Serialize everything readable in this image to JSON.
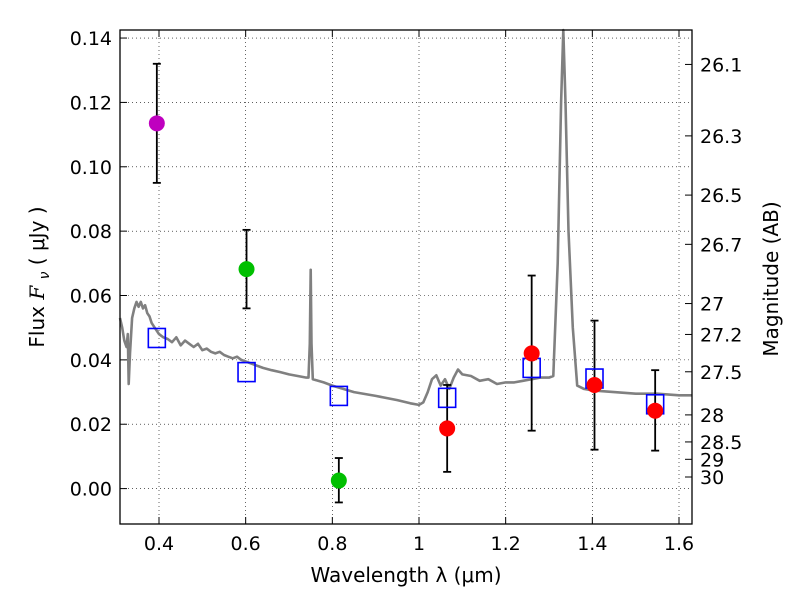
{
  "chart_data": {
    "type": "scatter",
    "xlabel": "Wavelength  λ (μm)",
    "ylabel": "Flux  F_ν  ( μJy )",
    "ylabel_parts": {
      "prefix": "Flux ",
      "symbol": "F",
      "subscript": "ν",
      "paren_open": "( ",
      "unit": "μJy",
      "paren_close": " )"
    },
    "y2label": "Magnitude (AB)",
    "xlim": [
      0.31,
      1.63
    ],
    "ylim": [
      -0.011,
      0.1425
    ],
    "x_ticks": [
      0.4,
      0.6,
      0.8,
      1.0,
      1.2,
      1.4,
      1.6
    ],
    "x_tick_labels": [
      "0.4",
      "0.6",
      "0.8",
      "1",
      "1.2",
      "1.4",
      "1.6"
    ],
    "y_ticks": [
      0.0,
      0.02,
      0.04,
      0.06,
      0.08,
      0.1,
      0.12,
      0.14
    ],
    "y_tick_labels": [
      "0.00",
      "0.02",
      "0.04",
      "0.06",
      "0.08",
      "0.10",
      "0.12",
      "0.14"
    ],
    "y2_ticks": [
      {
        "label": "26.1",
        "flux": 0.1318
      },
      {
        "label": "26.3",
        "flux": 0.1096
      },
      {
        "label": "26.5",
        "flux": 0.0912
      },
      {
        "label": "26.7",
        "flux": 0.0759
      },
      {
        "label": "27",
        "flux": 0.0575
      },
      {
        "label": "27.2",
        "flux": 0.0479
      },
      {
        "label": "27.5",
        "flux": 0.0363
      },
      {
        "label": "28",
        "flux": 0.0229
      },
      {
        "label": "28.5",
        "flux": 0.0145
      },
      {
        "label": "29",
        "flux": 0.0091
      },
      {
        "label": "30",
        "flux": 0.0036
      }
    ],
    "grid": true,
    "colors": {
      "magenta": "#bf00bf",
      "green": "#00bf00",
      "red": "#ff0000",
      "model_square": "#0000ff",
      "sed": "#808080",
      "errorbar": "#000000"
    },
    "series": [
      {
        "name": "observed_magenta",
        "marker": "circle",
        "color": "magenta",
        "points": [
          {
            "x": 0.395,
            "y": 0.1135,
            "yerr_low": 0.0185,
            "yerr_high": 0.0185
          }
        ]
      },
      {
        "name": "observed_green",
        "marker": "circle",
        "color": "green",
        "points": [
          {
            "x": 0.602,
            "y": 0.0682,
            "yerr_low": 0.0122,
            "yerr_high": 0.0122
          },
          {
            "x": 0.815,
            "y": 0.0025,
            "yerr_low": 0.0068,
            "yerr_high": 0.007
          }
        ]
      },
      {
        "name": "observed_red",
        "marker": "circle",
        "color": "red",
        "points": [
          {
            "x": 1.065,
            "y": 0.0187,
            "yerr_low": 0.0135,
            "yerr_high": 0.0135
          },
          {
            "x": 1.26,
            "y": 0.042,
            "yerr_low": 0.024,
            "yerr_high": 0.0242
          },
          {
            "x": 1.405,
            "y": 0.0322,
            "yerr_low": 0.0201,
            "yerr_high": 0.02
          },
          {
            "x": 1.545,
            "y": 0.0242,
            "yerr_low": 0.0124,
            "yerr_high": 0.0126
          }
        ]
      },
      {
        "name": "model_photometry",
        "marker": "square",
        "color": "model_square",
        "points": [
          {
            "x": 0.395,
            "y": 0.0468
          },
          {
            "x": 0.602,
            "y": 0.0362
          },
          {
            "x": 0.815,
            "y": 0.0288
          },
          {
            "x": 1.065,
            "y": 0.0282
          },
          {
            "x": 1.26,
            "y": 0.0375
          },
          {
            "x": 1.405,
            "y": 0.0342
          },
          {
            "x": 1.545,
            "y": 0.0262
          }
        ]
      }
    ],
    "sed_curve": [
      [
        0.31,
        0.053
      ],
      [
        0.315,
        0.05
      ],
      [
        0.32,
        0.046
      ],
      [
        0.325,
        0.044
      ],
      [
        0.328,
        0.048
      ],
      [
        0.33,
        0.0325
      ],
      [
        0.333,
        0.042
      ],
      [
        0.338,
        0.053
      ],
      [
        0.343,
        0.056
      ],
      [
        0.348,
        0.058
      ],
      [
        0.353,
        0.0565
      ],
      [
        0.358,
        0.058
      ],
      [
        0.363,
        0.056
      ],
      [
        0.368,
        0.057
      ],
      [
        0.373,
        0.0545
      ],
      [
        0.378,
        0.0535
      ],
      [
        0.383,
        0.0515
      ],
      [
        0.39,
        0.05
      ],
      [
        0.4,
        0.048
      ],
      [
        0.41,
        0.047
      ],
      [
        0.42,
        0.0465
      ],
      [
        0.43,
        0.0455
      ],
      [
        0.44,
        0.047
      ],
      [
        0.45,
        0.0445
      ],
      [
        0.46,
        0.046
      ],
      [
        0.47,
        0.045
      ],
      [
        0.48,
        0.044
      ],
      [
        0.49,
        0.045
      ],
      [
        0.5,
        0.043
      ],
      [
        0.51,
        0.0435
      ],
      [
        0.52,
        0.0425
      ],
      [
        0.53,
        0.042
      ],
      [
        0.54,
        0.0425
      ],
      [
        0.55,
        0.0415
      ],
      [
        0.56,
        0.041
      ],
      [
        0.57,
        0.0405
      ],
      [
        0.58,
        0.041
      ],
      [
        0.59,
        0.04
      ],
      [
        0.6,
        0.0395
      ],
      [
        0.62,
        0.0385
      ],
      [
        0.64,
        0.0375
      ],
      [
        0.66,
        0.0368
      ],
      [
        0.68,
        0.0362
      ],
      [
        0.7,
        0.0355
      ],
      [
        0.72,
        0.035
      ],
      [
        0.74,
        0.0345
      ],
      [
        0.745,
        0.0345
      ],
      [
        0.748,
        0.045
      ],
      [
        0.75,
        0.068
      ],
      [
        0.752,
        0.045
      ],
      [
        0.755,
        0.034
      ],
      [
        0.78,
        0.033
      ],
      [
        0.8,
        0.032
      ],
      [
        0.85,
        0.03
      ],
      [
        0.9,
        0.0288
      ],
      [
        0.95,
        0.0275
      ],
      [
        0.98,
        0.0265
      ],
      [
        1.0,
        0.026
      ],
      [
        1.01,
        0.0268
      ],
      [
        1.02,
        0.03
      ],
      [
        1.03,
        0.034
      ],
      [
        1.04,
        0.0352
      ],
      [
        1.05,
        0.032
      ],
      [
        1.06,
        0.034
      ],
      [
        1.07,
        0.031
      ],
      [
        1.08,
        0.0345
      ],
      [
        1.09,
        0.037
      ],
      [
        1.1,
        0.0355
      ],
      [
        1.12,
        0.035
      ],
      [
        1.14,
        0.0335
      ],
      [
        1.16,
        0.034
      ],
      [
        1.18,
        0.0325
      ],
      [
        1.2,
        0.033
      ],
      [
        1.22,
        0.033
      ],
      [
        1.24,
        0.0335
      ],
      [
        1.26,
        0.034
      ],
      [
        1.28,
        0.0345
      ],
      [
        1.3,
        0.0345
      ],
      [
        1.31,
        0.035
      ],
      [
        1.32,
        0.07
      ],
      [
        1.328,
        0.12
      ],
      [
        1.333,
        0.143
      ],
      [
        1.338,
        0.12
      ],
      [
        1.345,
        0.08
      ],
      [
        1.355,
        0.05
      ],
      [
        1.365,
        0.032
      ],
      [
        1.38,
        0.031
      ],
      [
        1.4,
        0.0305
      ],
      [
        1.45,
        0.03
      ],
      [
        1.5,
        0.0295
      ],
      [
        1.55,
        0.0295
      ],
      [
        1.6,
        0.029
      ],
      [
        1.63,
        0.029
      ]
    ]
  }
}
